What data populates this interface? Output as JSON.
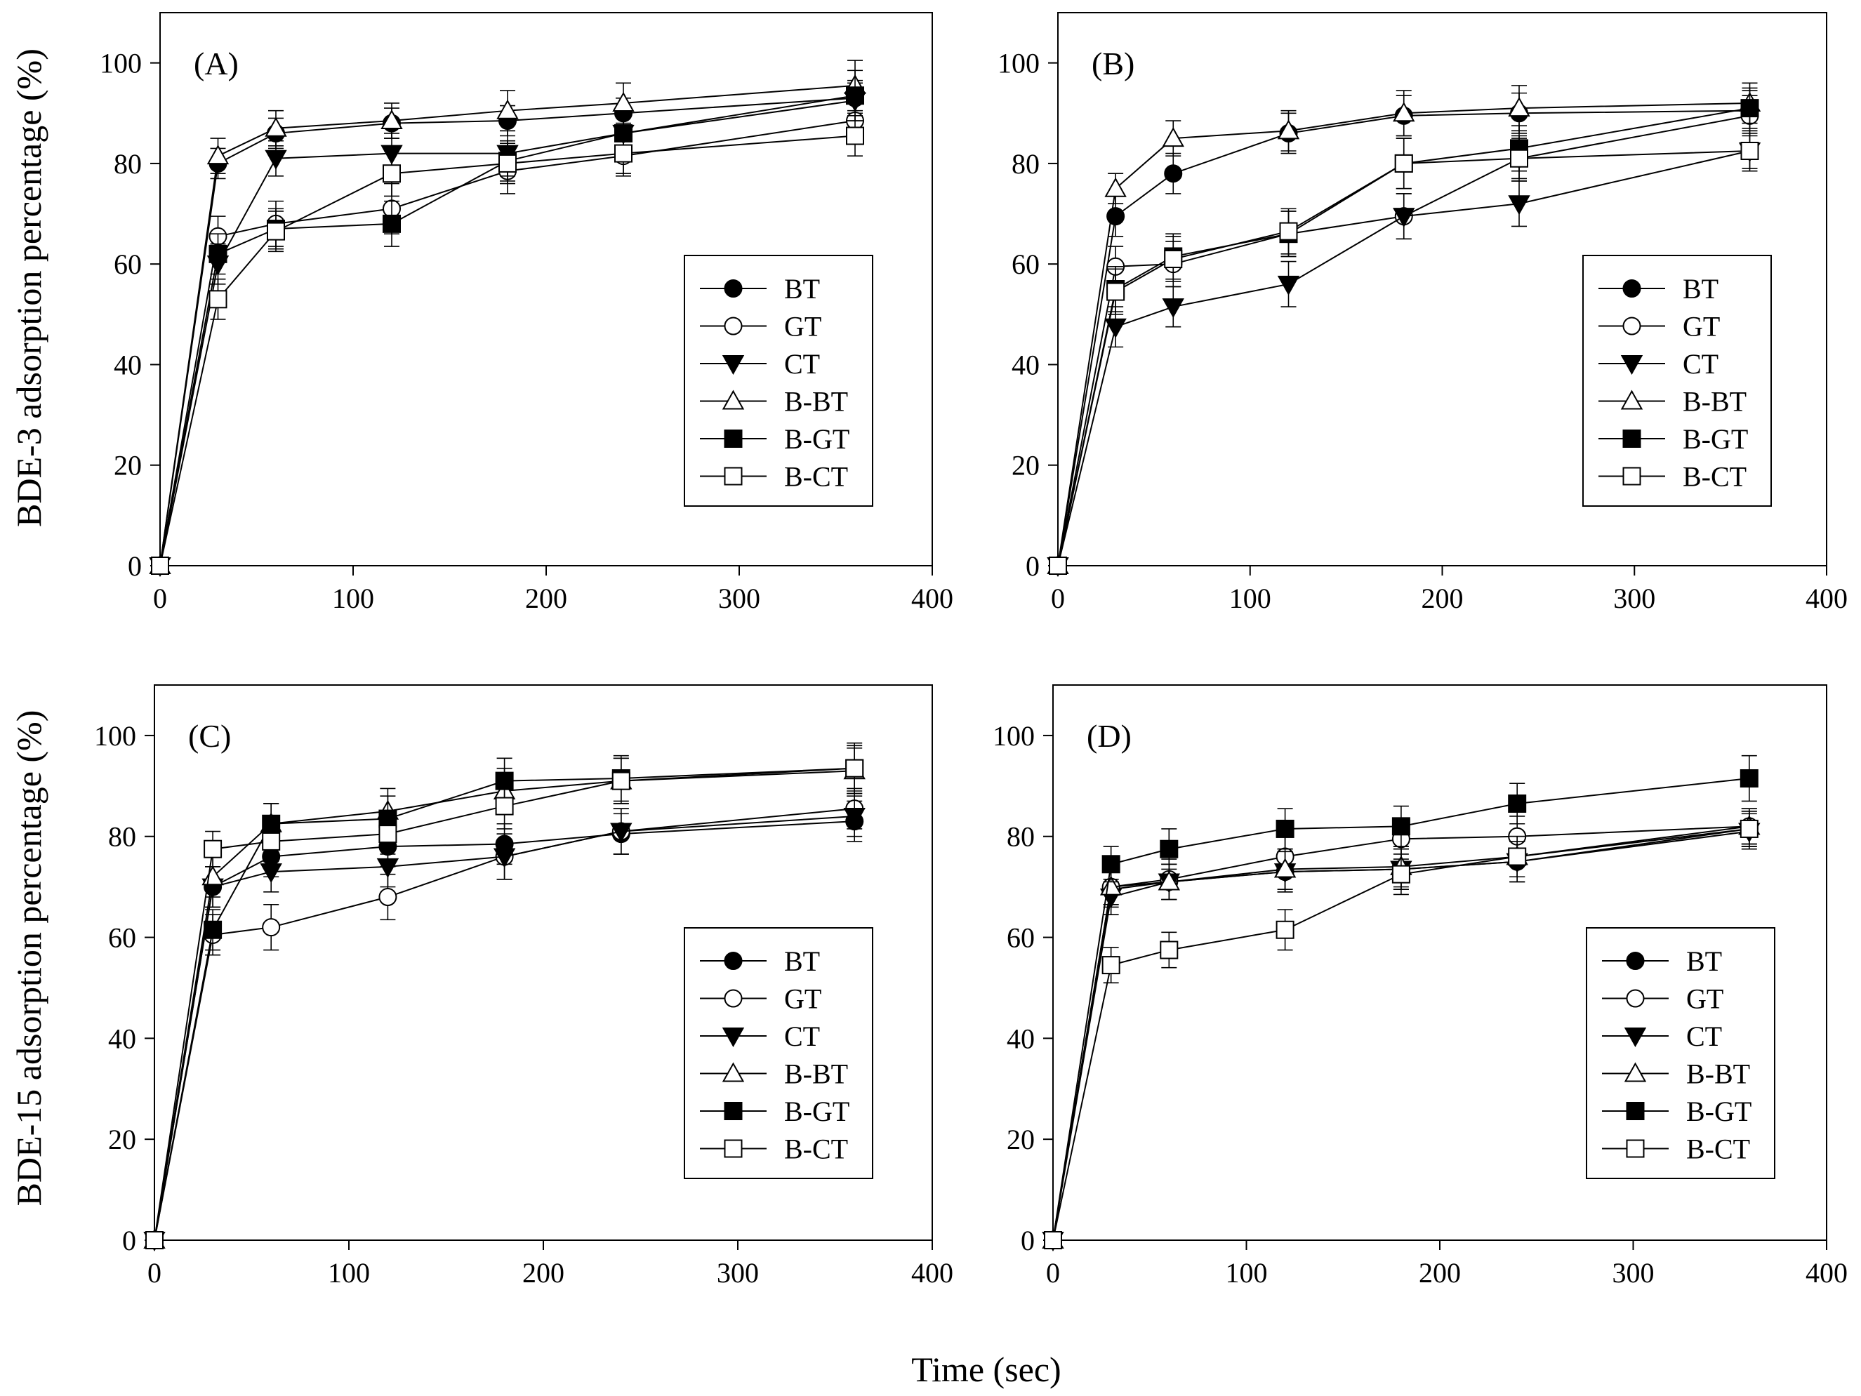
{
  "figure": {
    "xlabel": "Time (sec)",
    "ylabel_top": "BDE-3 adsorption percentage (%)",
    "ylabel_bottom": "BDE-15 adsorption percentage (%)",
    "colors": {
      "ink": "#000000",
      "background": "#ffffff"
    }
  },
  "legend_entries": [
    {
      "name": "BT",
      "marker": "circle",
      "fill": "filled"
    },
    {
      "name": "GT",
      "marker": "circle",
      "fill": "open"
    },
    {
      "name": "CT",
      "marker": "triangle-down",
      "fill": "filled"
    },
    {
      "name": "B-BT",
      "marker": "triangle-up",
      "fill": "open"
    },
    {
      "name": "B-GT",
      "marker": "square",
      "fill": "filled"
    },
    {
      "name": "B-CT",
      "marker": "square",
      "fill": "open"
    }
  ],
  "chart_data": [
    {
      "type": "line",
      "panel": "(A)",
      "ylabel_group": "BDE-3",
      "x": [
        0,
        30,
        60,
        120,
        180,
        240,
        360
      ],
      "xlim": [
        0,
        400
      ],
      "ylim": [
        0,
        110
      ],
      "xticks": [
        0,
        100,
        200,
        300,
        400
      ],
      "yticks": [
        0,
        20,
        40,
        60,
        80,
        100
      ],
      "legend_position": "lower-right",
      "series": [
        {
          "name": "BT",
          "values": [
            0,
            80,
            86,
            88,
            88.5,
            90,
            93
          ],
          "errors": [
            0,
            3,
            3,
            3,
            3,
            3,
            3
          ]
        },
        {
          "name": "GT",
          "values": [
            0,
            65.5,
            68,
            71,
            78.5,
            81.5,
            88.5
          ],
          "errors": [
            0,
            4,
            4.5,
            5,
            4.5,
            4,
            4
          ]
        },
        {
          "name": "CT",
          "values": [
            0,
            60,
            81,
            82,
            82,
            86,
            92.5
          ],
          "errors": [
            0,
            4,
            3.5,
            4,
            4.5,
            4,
            4
          ]
        },
        {
          "name": "B-BT",
          "values": [
            0,
            81.5,
            87,
            88.5,
            90.5,
            92,
            95.5
          ],
          "errors": [
            0,
            3.5,
            3.5,
            3.5,
            4,
            4,
            5
          ]
        },
        {
          "name": "B-GT",
          "values": [
            0,
            62,
            67,
            68,
            80.5,
            86,
            93.5
          ],
          "errors": [
            0,
            4,
            4,
            4.5,
            4,
            4,
            5
          ]
        },
        {
          "name": "B-CT",
          "values": [
            0,
            53,
            66.5,
            78,
            80,
            82,
            85.5
          ],
          "errors": [
            0,
            4,
            4,
            4.5,
            4,
            4,
            4
          ]
        }
      ]
    },
    {
      "type": "line",
      "panel": "(B)",
      "ylabel_group": "BDE-3",
      "x": [
        0,
        30,
        60,
        120,
        180,
        240,
        360
      ],
      "xlim": [
        0,
        400
      ],
      "ylim": [
        0,
        110
      ],
      "xticks": [
        0,
        100,
        200,
        300,
        400
      ],
      "yticks": [
        0,
        20,
        40,
        60,
        80,
        100
      ],
      "legend_position": "lower-right",
      "series": [
        {
          "name": "BT",
          "values": [
            0,
            69.5,
            78,
            86,
            89.5,
            90,
            90.5
          ],
          "errors": [
            0,
            4,
            4,
            4,
            4,
            4,
            4
          ]
        },
        {
          "name": "GT",
          "values": [
            0,
            59.5,
            60,
            66,
            69.5,
            81,
            89.5
          ],
          "errors": [
            0,
            4,
            4.5,
            4.5,
            4.5,
            4,
            4
          ]
        },
        {
          "name": "CT",
          "values": [
            0,
            47.5,
            51.5,
            56,
            69.5,
            72,
            82.5
          ],
          "errors": [
            0,
            4,
            4,
            4.5,
            4.5,
            4.5,
            4
          ]
        },
        {
          "name": "B-BT",
          "values": [
            0,
            75,
            85,
            86.5,
            90,
            91,
            92
          ],
          "errors": [
            0,
            3,
            3.5,
            4,
            4.5,
            4.5,
            4
          ]
        },
        {
          "name": "B-GT",
          "values": [
            0,
            55,
            61.5,
            66,
            80,
            83,
            91
          ],
          "errors": [
            0,
            4.5,
            4.5,
            4.5,
            5,
            4.5,
            4
          ]
        },
        {
          "name": "B-CT",
          "values": [
            0,
            54.5,
            61,
            66.5,
            80,
            81,
            82.5
          ],
          "errors": [
            0,
            4.5,
            4.5,
            4.5,
            5,
            4.5,
            3.5
          ]
        }
      ]
    },
    {
      "type": "line",
      "panel": "(C)",
      "ylabel_group": "BDE-15",
      "x": [
        0,
        30,
        60,
        120,
        180,
        240,
        360
      ],
      "xlim": [
        0,
        400
      ],
      "ylim": [
        0,
        110
      ],
      "xticks": [
        0,
        100,
        200,
        300,
        400
      ],
      "yticks": [
        0,
        20,
        40,
        60,
        80,
        100
      ],
      "legend_position": "lower-right",
      "series": [
        {
          "name": "BT",
          "values": [
            0,
            70,
            76,
            78,
            78.5,
            80.5,
            83
          ],
          "errors": [
            0,
            4,
            4,
            4,
            4,
            4,
            4
          ]
        },
        {
          "name": "GT",
          "values": [
            0,
            60.5,
            62,
            68,
            76,
            81,
            85.5
          ],
          "errors": [
            0,
            4,
            4.5,
            4.5,
            4.5,
            4.5,
            4
          ]
        },
        {
          "name": "CT",
          "values": [
            0,
            70,
            73,
            74,
            76,
            81,
            84
          ],
          "errors": [
            0,
            4,
            4,
            4,
            4.5,
            4.5,
            4
          ]
        },
        {
          "name": "B-BT",
          "values": [
            0,
            72,
            82.5,
            85,
            89,
            91,
            93
          ],
          "errors": [
            0,
            4,
            4,
            4.5,
            4.5,
            4.5,
            4.5
          ]
        },
        {
          "name": "B-GT",
          "values": [
            0,
            61.5,
            82.5,
            83.5,
            91,
            91.5,
            93.5
          ],
          "errors": [
            0,
            4,
            4,
            4.5,
            4.5,
            4.5,
            5
          ]
        },
        {
          "name": "B-CT",
          "values": [
            0,
            77.5,
            79,
            80.5,
            86,
            91,
            93.5
          ],
          "errors": [
            0,
            3.5,
            4,
            4,
            4.5,
            4.5,
            4.5
          ]
        }
      ]
    },
    {
      "type": "line",
      "panel": "(D)",
      "ylabel_group": "BDE-15",
      "x": [
        0,
        30,
        60,
        120,
        180,
        240,
        360
      ],
      "xlim": [
        0,
        400
      ],
      "ylim": [
        0,
        110
      ],
      "xticks": [
        0,
        100,
        200,
        300,
        400
      ],
      "yticks": [
        0,
        20,
        40,
        60,
        80,
        100
      ],
      "legend_position": "lower-right",
      "series": [
        {
          "name": "BT",
          "values": [
            0,
            69.5,
            71,
            73,
            73.5,
            75,
            81.5
          ],
          "errors": [
            0,
            3.5,
            3.5,
            4,
            4,
            4,
            3.5
          ]
        },
        {
          "name": "GT",
          "values": [
            0,
            70,
            71.5,
            76,
            79.5,
            80,
            82
          ],
          "errors": [
            0,
            3.5,
            4,
            4,
            4,
            4,
            3.5
          ]
        },
        {
          "name": "CT",
          "values": [
            0,
            68,
            71,
            73,
            73.5,
            75,
            81
          ],
          "errors": [
            0,
            3.5,
            3.5,
            4,
            4,
            4,
            3.5
          ]
        },
        {
          "name": "B-BT",
          "values": [
            0,
            70,
            71,
            73.5,
            74,
            76,
            82
          ],
          "errors": [
            0,
            3.5,
            3.5,
            4,
            4,
            4,
            3.5
          ]
        },
        {
          "name": "B-GT",
          "values": [
            0,
            74.5,
            77.5,
            81.5,
            82,
            86.5,
            91.5
          ],
          "errors": [
            0,
            3.5,
            4,
            4,
            4,
            4,
            4.5
          ]
        },
        {
          "name": "B-CT",
          "values": [
            0,
            54.5,
            57.5,
            61.5,
            72.5,
            76,
            81.5
          ],
          "errors": [
            0,
            3.5,
            3.5,
            4,
            4,
            4,
            3.5
          ]
        }
      ]
    }
  ]
}
